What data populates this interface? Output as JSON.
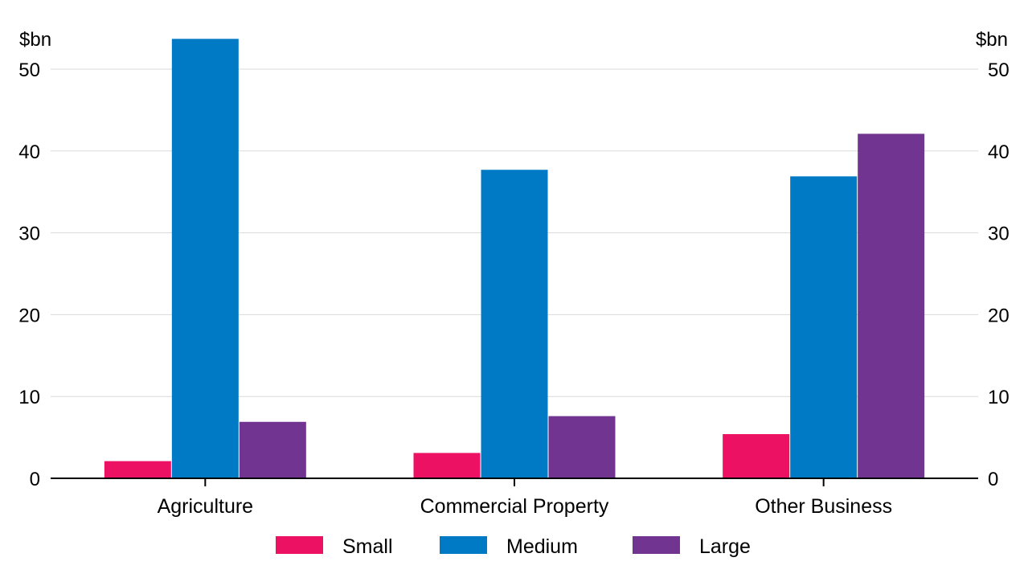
{
  "chart_data": {
    "type": "bar",
    "categories": [
      "Agriculture",
      "Commercial Property",
      "Other Business"
    ],
    "series": [
      {
        "name": "Small",
        "color": "#ec1163",
        "values": [
          2.1,
          3.1,
          5.4
        ]
      },
      {
        "name": "Medium",
        "color": "#007ac5",
        "values": [
          53.7,
          37.7,
          36.9
        ]
      },
      {
        "name": "Large",
        "color": "#713591",
        "values": [
          6.9,
          7.6,
          42.1
        ]
      }
    ],
    "ylim": [
      0,
      50
    ],
    "yticks": [
      0,
      10,
      20,
      30,
      40,
      50
    ],
    "y_unit_left": "$bn",
    "y_unit_right": "$bn",
    "grid": true,
    "legend_position": "bottom"
  }
}
